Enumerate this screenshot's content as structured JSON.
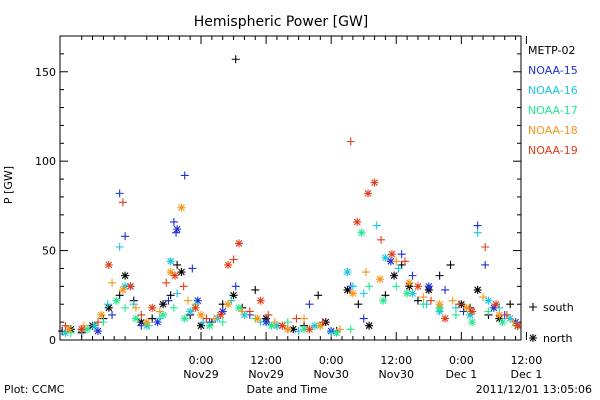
{
  "chart_data": {
    "type": "scatter",
    "title": "Hemispheric Power [GW]",
    "ylabel": "P [GW]",
    "xlabel": "Date and Time",
    "ylim": [
      0,
      170
    ],
    "y_ticks": [
      0,
      50,
      100,
      150
    ],
    "x_range_hours": [
      -13,
      29.5
    ],
    "x_ticks": [
      {
        "hour": 0,
        "time": "0:00",
        "date": "Nov29"
      },
      {
        "hour": 6,
        "time": "12:00",
        "date": "Nov29"
      },
      {
        "hour": 12,
        "time": "0:00",
        "date": "Nov30"
      },
      {
        "hour": 18,
        "time": "12:00",
        "date": "Nov30"
      },
      {
        "hour": 24,
        "time": "0:00",
        "date": "Dec 1"
      },
      {
        "hour": 30,
        "time": "12:00",
        "date": "Dec 1"
      }
    ],
    "legend": {
      "placement": "right",
      "markers": [
        {
          "symbol": "+",
          "label": "south"
        },
        {
          "symbol": "*",
          "label": "north"
        }
      ]
    },
    "series": [
      {
        "name": "METP-02",
        "color": "#000000",
        "points": [
          [
            -12.8,
            5,
            "+"
          ],
          [
            -12,
            6,
            "*"
          ],
          [
            -11,
            4,
            "+"
          ],
          [
            -10,
            8,
            "*"
          ],
          [
            -9,
            12,
            "+"
          ],
          [
            -8.5,
            18,
            "*"
          ],
          [
            -7.5,
            25,
            "+"
          ],
          [
            -7,
            36,
            "*"
          ],
          [
            -6.2,
            22,
            "+"
          ],
          [
            -5.5,
            10,
            "*"
          ],
          [
            -4.5,
            12,
            "+"
          ],
          [
            -3.5,
            20,
            "*"
          ],
          [
            -2.8,
            25,
            "+"
          ],
          [
            -2.2,
            42,
            "+"
          ],
          [
            -1.8,
            38,
            "*"
          ],
          [
            -1,
            14,
            "+"
          ],
          [
            0,
            8,
            "*"
          ],
          [
            1,
            10,
            "+"
          ],
          [
            2,
            20,
            "+"
          ],
          [
            3.2,
            157,
            "+"
          ],
          [
            3,
            25,
            "*"
          ],
          [
            3.8,
            18,
            "+"
          ],
          [
            5,
            28,
            "+"
          ],
          [
            6,
            12,
            "*"
          ],
          [
            7,
            8,
            "+"
          ],
          [
            8.5,
            6,
            "*"
          ],
          [
            9.5,
            8,
            "+"
          ],
          [
            10.8,
            25,
            "+"
          ],
          [
            11.5,
            10,
            "*"
          ],
          [
            12.5,
            5,
            "+"
          ],
          [
            13.5,
            28,
            "*"
          ],
          [
            14.5,
            20,
            "+"
          ],
          [
            15.5,
            8,
            "*"
          ],
          [
            17,
            25,
            "+"
          ],
          [
            17.8,
            36,
            "*"
          ],
          [
            18.5,
            42,
            "+"
          ],
          [
            19.2,
            30,
            "*"
          ],
          [
            20,
            22,
            "+"
          ],
          [
            21,
            28,
            "*"
          ],
          [
            22,
            36,
            "+"
          ],
          [
            23,
            42,
            "+"
          ],
          [
            24,
            20,
            "*"
          ],
          [
            24.8,
            18,
            "+"
          ],
          [
            25.5,
            28,
            "*"
          ],
          [
            26.5,
            14,
            "+"
          ],
          [
            27.5,
            12,
            "*"
          ],
          [
            28.5,
            20,
            "+"
          ],
          [
            29.2,
            8,
            "*"
          ]
        ]
      },
      {
        "name": "NOAA-15",
        "color": "#1f2fd6",
        "points": [
          [
            -11,
            6,
            "+"
          ],
          [
            -9.5,
            5,
            "*"
          ],
          [
            -8.2,
            14,
            "+"
          ],
          [
            -7.5,
            82,
            "+"
          ],
          [
            -7,
            58,
            "+"
          ],
          [
            -6.5,
            30,
            "*"
          ],
          [
            -5.5,
            8,
            "+"
          ],
          [
            -4,
            10,
            "*"
          ],
          [
            -3,
            22,
            "+"
          ],
          [
            -2.5,
            66,
            "+"
          ],
          [
            -2.2,
            62,
            "*"
          ],
          [
            -2.3,
            60,
            "+"
          ],
          [
            -1.5,
            92,
            "+"
          ],
          [
            -0.8,
            40,
            "+"
          ],
          [
            -0.3,
            22,
            "*"
          ],
          [
            0.8,
            10,
            "+"
          ],
          [
            2,
            16,
            "*"
          ],
          [
            3.2,
            30,
            "+"
          ],
          [
            4.5,
            14,
            "+"
          ],
          [
            6,
            10,
            "*"
          ],
          [
            8,
            6,
            "+"
          ],
          [
            10,
            20,
            "+"
          ],
          [
            12,
            5,
            "*"
          ],
          [
            13.8,
            30,
            "+"
          ],
          [
            15,
            12,
            "+"
          ],
          [
            17.5,
            44,
            "*"
          ],
          [
            18.5,
            48,
            "+"
          ],
          [
            19.5,
            36,
            "+"
          ],
          [
            21,
            30,
            "*"
          ],
          [
            22.5,
            28,
            "+"
          ],
          [
            24.2,
            16,
            "+"
          ],
          [
            25.5,
            64,
            "+"
          ],
          [
            26.2,
            42,
            "+"
          ],
          [
            27,
            18,
            "*"
          ],
          [
            28,
            14,
            "+"
          ],
          [
            29,
            10,
            "*"
          ]
        ]
      },
      {
        "name": "NOAA-16",
        "color": "#18c8e0",
        "points": [
          [
            -12.5,
            4,
            "*"
          ],
          [
            -11,
            5,
            "+"
          ],
          [
            -9.8,
            8,
            "*"
          ],
          [
            -8.6,
            20,
            "+"
          ],
          [
            -7.5,
            52,
            "+"
          ],
          [
            -7,
            30,
            "*"
          ],
          [
            -6.2,
            20,
            "+"
          ],
          [
            -5,
            8,
            "*"
          ],
          [
            -3.8,
            12,
            "+"
          ],
          [
            -2.8,
            44,
            "*"
          ],
          [
            -2.2,
            26,
            "+"
          ],
          [
            -1,
            16,
            "*"
          ],
          [
            0.2,
            10,
            "+"
          ],
          [
            1.5,
            12,
            "*"
          ],
          [
            2.8,
            22,
            "+"
          ],
          [
            4,
            14,
            "*"
          ],
          [
            5.5,
            10,
            "+"
          ],
          [
            7,
            8,
            "*"
          ],
          [
            9,
            5,
            "+"
          ],
          [
            10.5,
            8,
            "*"
          ],
          [
            12,
            4,
            "+"
          ],
          [
            13.5,
            38,
            "*"
          ],
          [
            14,
            30,
            "+"
          ],
          [
            15,
            26,
            "+"
          ],
          [
            16.2,
            64,
            "+"
          ],
          [
            17,
            46,
            "*"
          ],
          [
            18.2,
            40,
            "+"
          ],
          [
            19.5,
            26,
            "*"
          ],
          [
            20.8,
            20,
            "+"
          ],
          [
            22,
            16,
            "*"
          ],
          [
            23.5,
            18,
            "+"
          ],
          [
            24.8,
            14,
            "*"
          ],
          [
            25.5,
            60,
            "+"
          ],
          [
            26.5,
            22,
            "*"
          ],
          [
            27.5,
            18,
            "+"
          ],
          [
            28.5,
            12,
            "*"
          ]
        ]
      },
      {
        "name": "NOAA-17",
        "color": "#22e890",
        "points": [
          [
            -12,
            4,
            "+"
          ],
          [
            -10.5,
            6,
            "*"
          ],
          [
            -9,
            10,
            "+"
          ],
          [
            -7.8,
            22,
            "*"
          ],
          [
            -7,
            18,
            "+"
          ],
          [
            -6,
            12,
            "*"
          ],
          [
            -4.8,
            8,
            "+"
          ],
          [
            -3.5,
            14,
            "*"
          ],
          [
            -2.5,
            18,
            "+"
          ],
          [
            -1.5,
            12,
            "*"
          ],
          [
            -0.5,
            20,
            "+"
          ],
          [
            0.8,
            8,
            "*"
          ],
          [
            2,
            10,
            "+"
          ],
          [
            3.5,
            18,
            "*"
          ],
          [
            5,
            12,
            "+"
          ],
          [
            6.5,
            8,
            "*"
          ],
          [
            8,
            10,
            "+"
          ],
          [
            9.5,
            6,
            "*"
          ],
          [
            11,
            8,
            "+"
          ],
          [
            12.5,
            4,
            "*"
          ],
          [
            13.8,
            6,
            "+"
          ],
          [
            14.8,
            60,
            "*"
          ],
          [
            15.5,
            30,
            "+"
          ],
          [
            16.8,
            22,
            "*"
          ],
          [
            18,
            30,
            "+"
          ],
          [
            19,
            26,
            "*"
          ],
          [
            20.5,
            20,
            "+"
          ],
          [
            22,
            18,
            "*"
          ],
          [
            23.5,
            14,
            "+"
          ],
          [
            25,
            10,
            "*"
          ],
          [
            26.5,
            16,
            "+"
          ],
          [
            27.8,
            10,
            "*"
          ],
          [
            29,
            8,
            "+"
          ]
        ]
      },
      {
        "name": "NOAA-18",
        "color": "#f59818",
        "points": [
          [
            -12.2,
            6,
            "*"
          ],
          [
            -10.8,
            8,
            "+"
          ],
          [
            -9.2,
            14,
            "*"
          ],
          [
            -8.2,
            32,
            "+"
          ],
          [
            -7.2,
            28,
            "*"
          ],
          [
            -6,
            18,
            "+"
          ],
          [
            -5,
            10,
            "*"
          ],
          [
            -3.8,
            16,
            "+"
          ],
          [
            -2.8,
            38,
            "*"
          ],
          [
            -1.8,
            74,
            "*"
          ],
          [
            -1.2,
            22,
            "+"
          ],
          [
            0,
            14,
            "*"
          ],
          [
            1.2,
            12,
            "+"
          ],
          [
            2.5,
            20,
            "*"
          ],
          [
            3.8,
            16,
            "+"
          ],
          [
            5.2,
            12,
            "*"
          ],
          [
            6.8,
            10,
            "+"
          ],
          [
            8,
            6,
            "*"
          ],
          [
            9.5,
            12,
            "+"
          ],
          [
            11,
            8,
            "*"
          ],
          [
            12.8,
            6,
            "+"
          ],
          [
            14,
            26,
            "*"
          ],
          [
            15.2,
            38,
            "+"
          ],
          [
            16.5,
            34,
            "*"
          ],
          [
            18,
            44,
            "+"
          ],
          [
            19.2,
            32,
            "*"
          ],
          [
            20.5,
            24,
            "+"
          ],
          [
            22,
            20,
            "*"
          ],
          [
            23.2,
            22,
            "+"
          ],
          [
            24.5,
            18,
            "*"
          ],
          [
            26,
            24,
            "+"
          ],
          [
            27.5,
            14,
            "*"
          ],
          [
            28.8,
            10,
            "+"
          ]
        ]
      },
      {
        "name": "NOAA-19",
        "color": "#e03e1a",
        "points": [
          [
            -12.5,
            8,
            "+"
          ],
          [
            -11,
            6,
            "*"
          ],
          [
            -9.5,
            10,
            "+"
          ],
          [
            -8.5,
            42,
            "*"
          ],
          [
            -7.2,
            77,
            "+"
          ],
          [
            -6.5,
            30,
            "*"
          ],
          [
            -5.5,
            14,
            "+"
          ],
          [
            -4.5,
            18,
            "*"
          ],
          [
            -3.2,
            32,
            "+"
          ],
          [
            -2.4,
            36,
            "*"
          ],
          [
            -1.6,
            30,
            "+"
          ],
          [
            -0.5,
            18,
            "*"
          ],
          [
            0.5,
            12,
            "+"
          ],
          [
            1.8,
            14,
            "*"
          ],
          [
            2.5,
            42,
            "*"
          ],
          [
            3,
            45,
            "+"
          ],
          [
            3.5,
            54,
            "*"
          ],
          [
            4.5,
            16,
            "+"
          ],
          [
            5.5,
            22,
            "*"
          ],
          [
            6.2,
            14,
            "+"
          ],
          [
            7.5,
            8,
            "*"
          ],
          [
            8.8,
            12,
            "+"
          ],
          [
            10,
            6,
            "*"
          ],
          [
            11.2,
            10,
            "+"
          ],
          [
            13.8,
            111,
            "+"
          ],
          [
            14.4,
            66,
            "*"
          ],
          [
            15.4,
            82,
            "*"
          ],
          [
            16,
            88,
            "*"
          ],
          [
            16.6,
            56,
            "+"
          ],
          [
            17.6,
            48,
            "*"
          ],
          [
            18.8,
            44,
            "+"
          ],
          [
            20,
            30,
            "*"
          ],
          [
            21.2,
            22,
            "+"
          ],
          [
            22.5,
            12,
            "*"
          ],
          [
            23.8,
            20,
            "+"
          ],
          [
            25,
            16,
            "*"
          ],
          [
            26.2,
            52,
            "+"
          ],
          [
            27.2,
            20,
            "*"
          ],
          [
            28.2,
            14,
            "+"
          ],
          [
            29.2,
            8,
            "*"
          ]
        ]
      }
    ]
  },
  "footer": {
    "left": "Plot: CCMC",
    "right": "2011/12/01 13:05:06"
  }
}
